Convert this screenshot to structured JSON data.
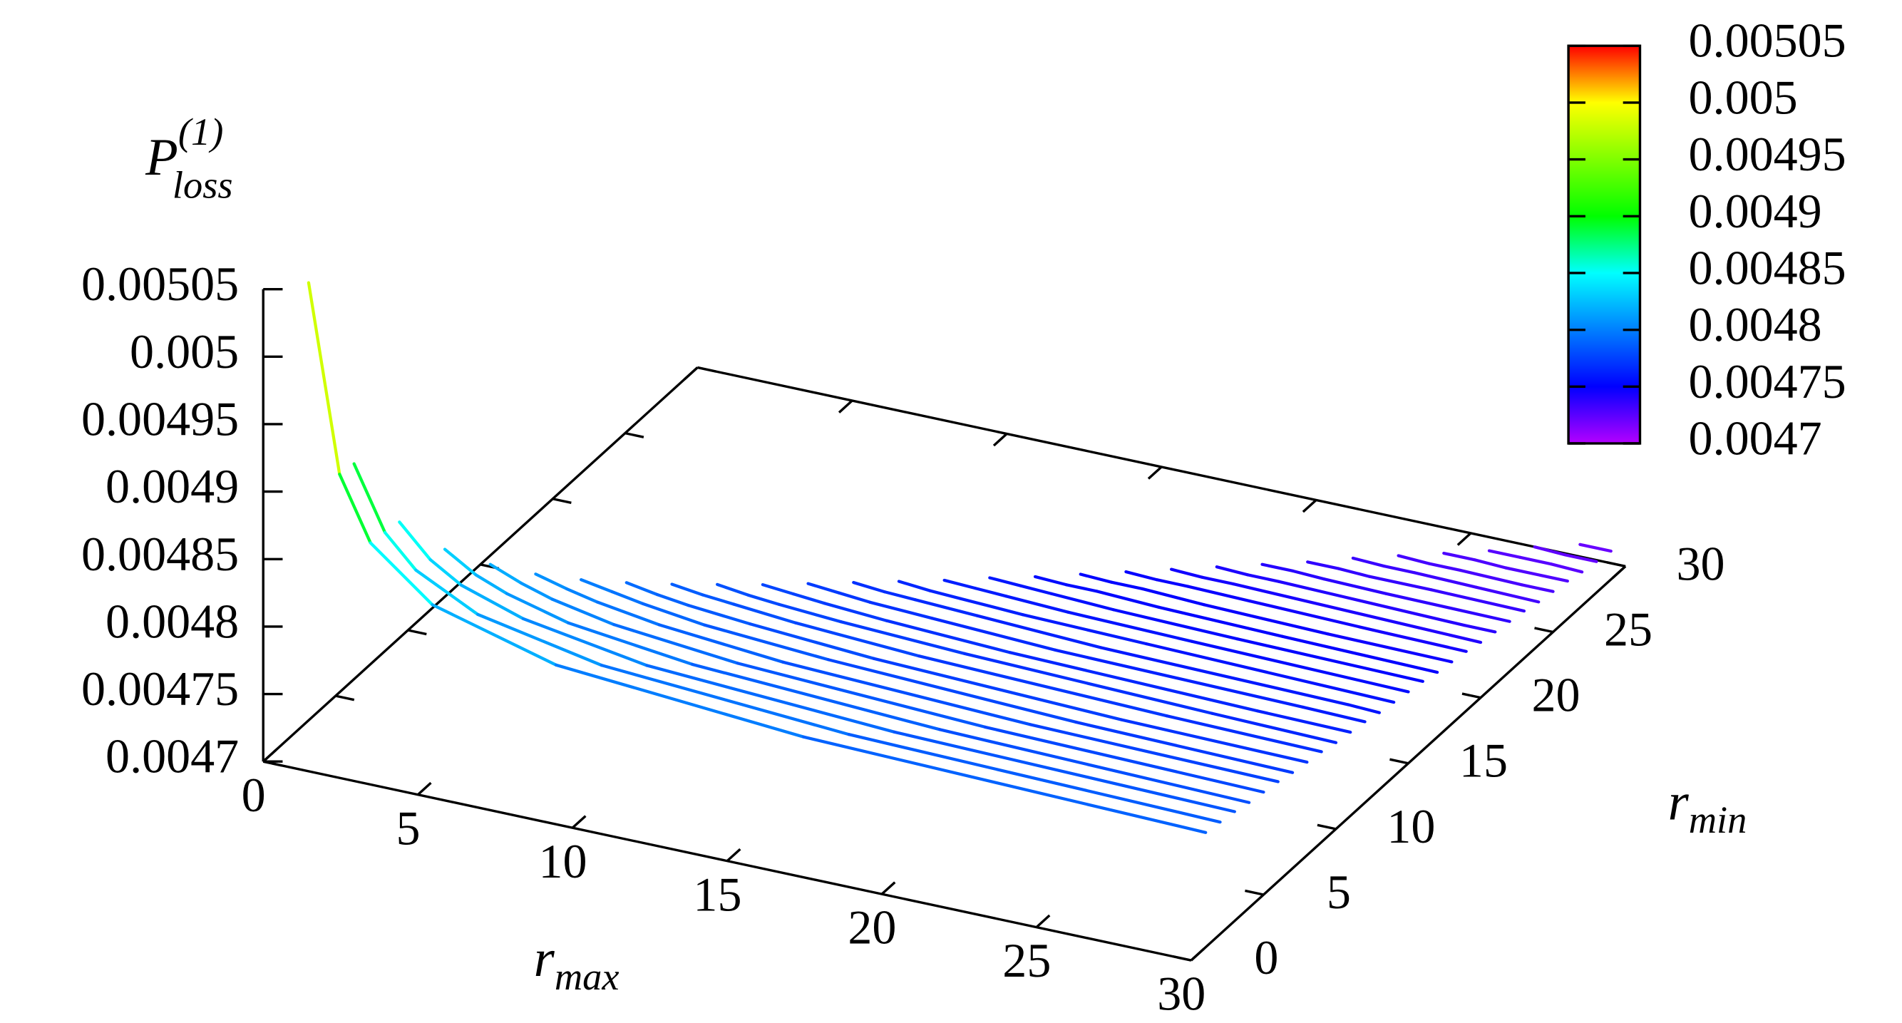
{
  "chart_data": {
    "type": "line3d",
    "zlabel": "P",
    "zlabel_sub": "loss",
    "zlabel_sup": "(1)",
    "xlabel": "r",
    "xlabel_sub": "max",
    "ylabel": "r",
    "ylabel_sub": "min",
    "xlim": [
      0,
      30
    ],
    "xticks": [
      0,
      5,
      10,
      15,
      20,
      25,
      30
    ],
    "ylim": [
      0,
      30
    ],
    "yticks": [
      0,
      5,
      10,
      15,
      20,
      25,
      30
    ],
    "zlim": [
      0.0047,
      0.00505
    ],
    "zticks": [
      0.0047,
      0.00475,
      0.0048,
      0.00485,
      0.0049,
      0.00495,
      0.005,
      0.00505
    ],
    "cbticks": [
      0.0047,
      0.00475,
      0.0048,
      0.00485,
      0.0049,
      0.00495,
      0.005,
      0.00505
    ],
    "colormap": [
      {
        "value": 0.0047,
        "color": "#b400ff"
      },
      {
        "value": 0.00475,
        "color": "#0000ff"
      },
      {
        "value": 0.00485,
        "color": "#00ffff"
      },
      {
        "value": 0.0049,
        "color": "#00ff00"
      },
      {
        "value": 0.005,
        "color": "#ffff00"
      },
      {
        "value": 0.00505,
        "color": "#ff0000"
      }
    ],
    "series": [
      {
        "r_min": 1,
        "r_max": [
          1,
          2,
          3,
          5,
          9,
          17,
          30
        ],
        "values": [
          0.00505,
          0.004913,
          0.004867,
          0.004831,
          0.004806,
          0.004792,
          0.004785
        ]
      },
      {
        "r_min": 2,
        "r_max": [
          2,
          3,
          4,
          6,
          10,
          18,
          30
        ],
        "values": [
          0.004911,
          0.004865,
          0.004842,
          0.004819,
          0.004801,
          0.004789,
          0.004783
        ]
      },
      {
        "r_min": 3,
        "r_max": [
          3,
          4,
          5,
          7,
          11,
          19,
          30
        ],
        "values": [
          0.004863,
          0.00484,
          0.004826,
          0.004811,
          0.004796,
          0.004786,
          0.004781
        ]
      },
      {
        "r_min": 4,
        "r_max": [
          4,
          5,
          6,
          8,
          12,
          20,
          30
        ],
        "values": [
          0.004838,
          0.004824,
          0.004815,
          0.004803,
          0.004792,
          0.004783,
          0.004778
        ]
      },
      {
        "r_min": 5,
        "r_max": [
          5,
          6,
          7,
          9,
          13,
          21,
          30
        ],
        "values": [
          0.004822,
          0.004813,
          0.004806,
          0.004797,
          0.004788,
          0.00478,
          0.004776
        ]
      },
      {
        "r_min": 6,
        "r_max": [
          6,
          7,
          8,
          10,
          14,
          22,
          30
        ],
        "values": [
          0.00481,
          0.004804,
          0.004799,
          0.004792,
          0.004784,
          0.004777,
          0.004774
        ]
      },
      {
        "r_min": 7,
        "r_max": [
          7,
          8,
          9,
          11,
          15,
          23,
          30
        ],
        "values": [
          0.004801,
          0.004797,
          0.004793,
          0.004787,
          0.004781,
          0.004774,
          0.004771
        ]
      },
      {
        "r_min": 8,
        "r_max": [
          8,
          9,
          10,
          12,
          16,
          24,
          30
        ],
        "values": [
          0.004794,
          0.00479,
          0.004787,
          0.004783,
          0.004777,
          0.004771,
          0.004769
        ]
      },
      {
        "r_min": 9,
        "r_max": [
          9,
          10,
          11,
          13,
          17,
          25,
          30
        ],
        "values": [
          0.004788,
          0.004785,
          0.004783,
          0.004779,
          0.004774,
          0.004769,
          0.004767
        ]
      },
      {
        "r_min": 10,
        "r_max": [
          10,
          11,
          12,
          14,
          18,
          26,
          30
        ],
        "values": [
          0.004783,
          0.00478,
          0.004778,
          0.004775,
          0.004771,
          0.004766,
          0.004764
        ]
      },
      {
        "r_min": 11,
        "r_max": [
          11,
          12,
          13,
          15,
          19,
          27,
          30
        ],
        "values": [
          0.004778,
          0.004776,
          0.004774,
          0.004771,
          0.004767,
          0.004763,
          0.004762
        ]
      },
      {
        "r_min": 12,
        "r_max": [
          12,
          13,
          14,
          16,
          20,
          28,
          30
        ],
        "values": [
          0.004774,
          0.004772,
          0.00477,
          0.004768,
          0.004764,
          0.004761,
          0.00476
        ]
      },
      {
        "r_min": 13,
        "r_max": [
          13,
          14,
          15,
          17,
          21,
          29,
          30
        ],
        "values": [
          0.00477,
          0.004768,
          0.004767,
          0.004765,
          0.004761,
          0.004758,
          0.004757
        ]
      },
      {
        "r_min": 14,
        "r_max": [
          14,
          15,
          16,
          18,
          22,
          30
        ],
        "values": [
          0.004766,
          0.004764,
          0.004763,
          0.004761,
          0.004759,
          0.004755
        ]
      },
      {
        "r_min": 15,
        "r_max": [
          15,
          16,
          17,
          19,
          23,
          30
        ],
        "values": [
          0.004762,
          0.004761,
          0.00476,
          0.004758,
          0.004756,
          0.004753
        ]
      },
      {
        "r_min": 16,
        "r_max": [
          16,
          17,
          18,
          20,
          24,
          30
        ],
        "values": [
          0.004759,
          0.004758,
          0.004757,
          0.004755,
          0.004753,
          0.004751
        ]
      },
      {
        "r_min": 17,
        "r_max": [
          17,
          18,
          19,
          21,
          25,
          30
        ],
        "values": [
          0.004755,
          0.004754,
          0.004754,
          0.004752,
          0.00475,
          0.004748
        ]
      },
      {
        "r_min": 18,
        "r_max": [
          18,
          19,
          20,
          22,
          26,
          30
        ],
        "values": [
          0.004752,
          0.004751,
          0.004751,
          0.004749,
          0.004747,
          0.004746
        ]
      },
      {
        "r_min": 19,
        "r_max": [
          19,
          20,
          21,
          23,
          27,
          30
        ],
        "values": [
          0.004749,
          0.004748,
          0.004748,
          0.004747,
          0.004745,
          0.004744
        ]
      },
      {
        "r_min": 20,
        "r_max": [
          20,
          21,
          22,
          24,
          28,
          30
        ],
        "values": [
          0.004746,
          0.004745,
          0.004745,
          0.004744,
          0.004742,
          0.004741
        ]
      },
      {
        "r_min": 21,
        "r_max": [
          21,
          22,
          23,
          25,
          29,
          30
        ],
        "values": [
          0.004743,
          0.004742,
          0.004742,
          0.004741,
          0.004739,
          0.004739
        ]
      },
      {
        "r_min": 22,
        "r_max": [
          22,
          23,
          24,
          26,
          30
        ],
        "values": [
          0.00474,
          0.00474,
          0.004739,
          0.004738,
          0.004737
        ]
      },
      {
        "r_min": 23,
        "r_max": [
          23,
          24,
          25,
          27,
          30
        ],
        "values": [
          0.004737,
          0.004737,
          0.004736,
          0.004736,
          0.004735
        ]
      },
      {
        "r_min": 24,
        "r_max": [
          24,
          25,
          26,
          28,
          30
        ],
        "values": [
          0.004735,
          0.004734,
          0.004734,
          0.004733,
          0.004732
        ]
      },
      {
        "r_min": 25,
        "r_max": [
          25,
          26,
          27,
          29,
          30
        ],
        "values": [
          0.004732,
          0.004731,
          0.004731,
          0.00473,
          0.00473
        ]
      },
      {
        "r_min": 26,
        "r_max": [
          26,
          27,
          28,
          30
        ],
        "values": [
          0.004729,
          0.004729,
          0.004728,
          0.004728
        ]
      },
      {
        "r_min": 27,
        "r_max": [
          27,
          28,
          29,
          30
        ],
        "values": [
          0.004726,
          0.004726,
          0.004726,
          0.004725
        ]
      },
      {
        "r_min": 28,
        "r_max": [
          28,
          29,
          30
        ],
        "values": [
          0.004724,
          0.004723,
          0.004723
        ]
      },
      {
        "r_min": 29,
        "r_max": [
          29,
          30
        ],
        "values": [
          0.004721,
          0.004721
        ]
      }
    ]
  }
}
